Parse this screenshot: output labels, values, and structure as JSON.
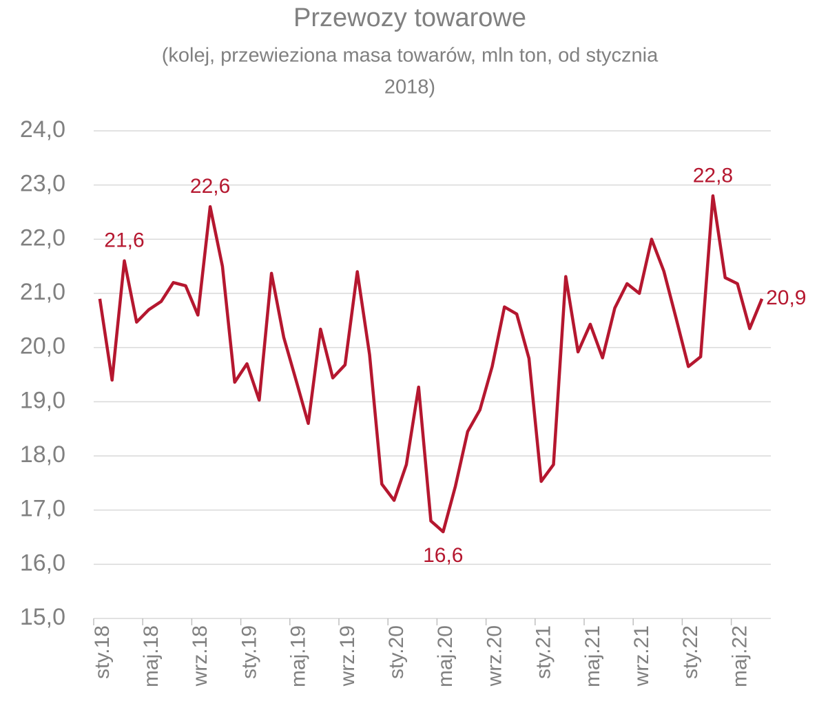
{
  "chart_data": {
    "type": "line",
    "title": "Przewozy towarowe",
    "subtitle": [
      "(kolej, przewieziona masa towarów, mln ton, od stycznia",
      "2018)"
    ],
    "categories": [
      "sty.18",
      null,
      null,
      null,
      "maj.18",
      null,
      null,
      null,
      "wrz.18",
      null,
      null,
      null,
      "sty.19",
      null,
      null,
      null,
      "maj.19",
      null,
      null,
      null,
      "wrz.19",
      null,
      null,
      null,
      "sty.20",
      null,
      null,
      null,
      "maj.20",
      null,
      null,
      null,
      "wrz.20",
      null,
      null,
      null,
      "sty.21",
      null,
      null,
      null,
      "maj.21",
      null,
      null,
      null,
      "wrz.21",
      null,
      null,
      null,
      "sty.22",
      null,
      null,
      null,
      "maj.22",
      null,
      null
    ],
    "series": [
      {
        "name": "Przewozy towarowe",
        "color": "#b5172f",
        "values": [
          20.9,
          19.4,
          21.6,
          20.47,
          20.7,
          20.85,
          21.2,
          21.14,
          20.6,
          22.6,
          21.5,
          19.36,
          19.7,
          19.03,
          21.37,
          20.19,
          19.4,
          18.6,
          20.34,
          19.44,
          19.68,
          21.4,
          19.87,
          17.48,
          17.18,
          17.84,
          19.27,
          16.8,
          16.6,
          17.44,
          18.45,
          18.85,
          19.65,
          20.75,
          20.62,
          19.8,
          17.53,
          17.84,
          21.31,
          19.92,
          20.43,
          19.81,
          20.73,
          21.18,
          21.0,
          22.0,
          21.41,
          20.54,
          19.65,
          19.83,
          22.8,
          21.29,
          21.18,
          20.35,
          20.9
        ],
        "value_labels": [
          null,
          null,
          "21,6",
          null,
          null,
          null,
          null,
          null,
          null,
          "22,6",
          null,
          null,
          null,
          null,
          null,
          null,
          null,
          null,
          null,
          null,
          null,
          null,
          null,
          null,
          null,
          null,
          null,
          null,
          "16,6",
          null,
          null,
          null,
          null,
          null,
          null,
          null,
          null,
          null,
          null,
          null,
          null,
          null,
          null,
          null,
          null,
          null,
          null,
          null,
          null,
          null,
          "22,8",
          null,
          null,
          null,
          "20,9"
        ]
      }
    ],
    "ylim": [
      15,
      24
    ],
    "yticks": [
      {
        "value": 15,
        "label": "15,0"
      },
      {
        "value": 16,
        "label": "16,0"
      },
      {
        "value": 17,
        "label": "17,0"
      },
      {
        "value": 18,
        "label": "18,0"
      },
      {
        "value": 19,
        "label": "19,0"
      },
      {
        "value": 20,
        "label": "20,0"
      },
      {
        "value": 21,
        "label": "21,0"
      },
      {
        "value": 22,
        "label": "22,0"
      },
      {
        "value": 23,
        "label": "23,0"
      },
      {
        "value": 24,
        "label": "24,0"
      }
    ],
    "grid": true
  }
}
